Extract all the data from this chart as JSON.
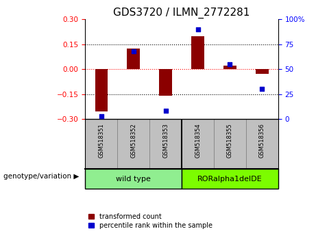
{
  "title": "GDS3720 / ILMN_2772281",
  "samples": [
    "GSM518351",
    "GSM518352",
    "GSM518353",
    "GSM518354",
    "GSM518355",
    "GSM518356"
  ],
  "transformed_count": [
    -0.255,
    0.125,
    -0.16,
    0.2,
    0.02,
    -0.03
  ],
  "percentile_rank": [
    3,
    68,
    8,
    90,
    55,
    30
  ],
  "group_wt_color": "#90EE90",
  "group_ror_color": "#7CFC00",
  "group_wt_label": "wild type",
  "group_ror_label": "RORalpha1delDE",
  "ylim_left": [
    -0.3,
    0.3
  ],
  "ylim_right": [
    0,
    100
  ],
  "yticks_left": [
    -0.3,
    -0.15,
    0,
    0.15,
    0.3
  ],
  "yticks_right": [
    0,
    25,
    50,
    75,
    100
  ],
  "bar_color": "#8B0000",
  "dot_color": "#0000CD",
  "zero_line_color": "#FF0000",
  "grid_color": "#000000",
  "legend_red_label": "transformed count",
  "legend_blue_label": "percentile rank within the sample",
  "genotype_label": "genotype/variation",
  "background_plot": "#FFFFFF",
  "background_sample": "#C0C0C0",
  "title_fontsize": 11
}
